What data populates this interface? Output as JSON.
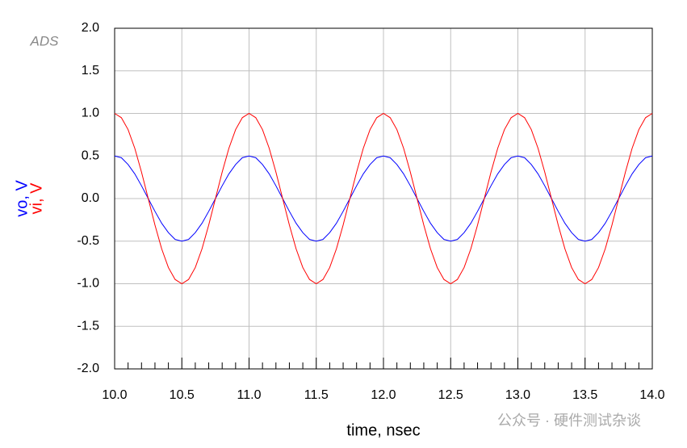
{
  "chart_data": {
    "type": "line",
    "logo": "ADS",
    "xlabel": "time, nsec",
    "watermark": "公众号 · 硬件测试杂谈",
    "x": [
      10,
      10.05,
      10.1,
      10.15,
      10.2,
      10.25,
      10.3,
      10.35,
      10.4,
      10.45,
      10.5,
      10.55,
      10.6,
      10.65,
      10.7,
      10.75,
      10.8,
      10.85,
      10.9,
      10.95,
      11,
      11.05,
      11.1,
      11.15,
      11.2,
      11.25,
      11.3,
      11.35,
      11.4,
      11.45,
      11.5,
      11.55,
      11.6,
      11.65,
      11.7,
      11.75,
      11.8,
      11.85,
      11.9,
      11.95,
      12,
      12.05,
      12.1,
      12.15,
      12.2,
      12.25,
      12.3,
      12.35,
      12.4,
      12.45,
      12.5,
      12.55,
      12.6,
      12.65,
      12.7,
      12.75,
      12.8,
      12.85,
      12.9,
      12.95,
      13,
      13.05,
      13.1,
      13.15,
      13.2,
      13.25,
      13.3,
      13.35,
      13.4,
      13.45,
      13.5,
      13.55,
      13.6,
      13.65,
      13.7,
      13.75,
      13.8,
      13.85,
      13.9,
      13.95,
      14
    ],
    "series": [
      {
        "name": "vo, V",
        "color": "#0000ff",
        "values": [
          0.5,
          0.48,
          0.4,
          0.29,
          0.15,
          0,
          -0.15,
          -0.29,
          -0.4,
          -0.48,
          -0.5,
          -0.48,
          -0.4,
          -0.29,
          -0.15,
          0,
          0.15,
          0.29,
          0.4,
          0.48,
          0.5,
          0.48,
          0.4,
          0.29,
          0.15,
          0,
          -0.15,
          -0.29,
          -0.4,
          -0.48,
          -0.5,
          -0.48,
          -0.4,
          -0.29,
          -0.15,
          0,
          0.15,
          0.29,
          0.4,
          0.48,
          0.5,
          0.48,
          0.4,
          0.29,
          0.15,
          0,
          -0.15,
          -0.29,
          -0.4,
          -0.48,
          -0.5,
          -0.48,
          -0.4,
          -0.29,
          -0.15,
          0,
          0.15,
          0.29,
          0.4,
          0.48,
          0.5,
          0.48,
          0.4,
          0.29,
          0.15,
          0,
          -0.15,
          -0.29,
          -0.4,
          -0.48,
          -0.5,
          -0.48,
          -0.4,
          -0.29,
          -0.15,
          0,
          0.15,
          0.29,
          0.4,
          0.48,
          0.5
        ]
      },
      {
        "name": "vi, V",
        "color": "#ff0000",
        "values": [
          1,
          0.95,
          0.81,
          0.59,
          0.31,
          0,
          -0.31,
          -0.59,
          -0.81,
          -0.95,
          -1,
          -0.95,
          -0.81,
          -0.59,
          -0.31,
          0,
          0.31,
          0.59,
          0.81,
          0.95,
          1,
          0.95,
          0.81,
          0.59,
          0.31,
          0,
          -0.31,
          -0.59,
          -0.81,
          -0.95,
          -1,
          -0.95,
          -0.81,
          -0.59,
          -0.31,
          0,
          0.31,
          0.59,
          0.81,
          0.95,
          1,
          0.95,
          0.81,
          0.59,
          0.31,
          0,
          -0.31,
          -0.59,
          -0.81,
          -0.95,
          -1,
          -0.95,
          -0.81,
          -0.59,
          -0.31,
          0,
          0.31,
          0.59,
          0.81,
          0.95,
          1,
          0.95,
          0.81,
          0.59,
          0.31,
          0,
          -0.31,
          -0.59,
          -0.81,
          -0.95,
          -1,
          -0.95,
          -0.81,
          -0.59,
          -0.31,
          0,
          0.31,
          0.59,
          0.81,
          0.95,
          1
        ]
      }
    ],
    "xlim": [
      10,
      14
    ],
    "ylim": [
      -2,
      2
    ],
    "xticks": [
      {
        "value": 10,
        "label": "10.0"
      },
      {
        "value": 10.5,
        "label": "10.5"
      },
      {
        "value": 11,
        "label": "11.0"
      },
      {
        "value": 11.5,
        "label": "11.5"
      },
      {
        "value": 12,
        "label": "12.0"
      },
      {
        "value": 12.5,
        "label": "12.5"
      },
      {
        "value": 13,
        "label": "13.0"
      },
      {
        "value": 13.5,
        "label": "13.5"
      },
      {
        "value": 14,
        "label": "14.0"
      }
    ],
    "yticks": [
      {
        "value": -2,
        "label": "-2.0"
      },
      {
        "value": -1.5,
        "label": "-1.5"
      },
      {
        "value": -1,
        "label": "-1.0"
      },
      {
        "value": -0.5,
        "label": "-0.5"
      },
      {
        "value": 0,
        "label": "0.0"
      },
      {
        "value": 0.5,
        "label": "0.5"
      },
      {
        "value": 1,
        "label": "1.0"
      },
      {
        "value": 1.5,
        "label": "1.5"
      },
      {
        "value": 2,
        "label": "2.0"
      }
    ],
    "grid": true
  }
}
